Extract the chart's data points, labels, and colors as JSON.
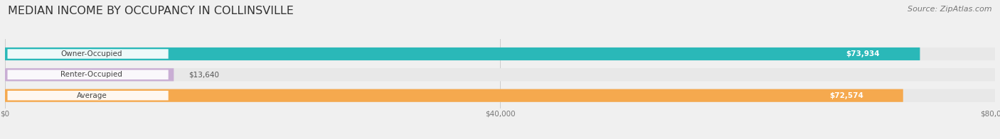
{
  "title": "MEDIAN INCOME BY OCCUPANCY IN COLLINSVILLE",
  "source": "Source: ZipAtlas.com",
  "categories": [
    "Owner-Occupied",
    "Renter-Occupied",
    "Average"
  ],
  "values": [
    73934,
    13640,
    72574
  ],
  "bar_colors": [
    "#2ab8b8",
    "#c9aed4",
    "#f5a94e"
  ],
  "bar_bg_color": "#e8e8e8",
  "value_labels": [
    "$73,934",
    "$13,640",
    "$72,574"
  ],
  "xlim": [
    0,
    80000
  ],
  "xticks": [
    0,
    40000,
    80000
  ],
  "xticklabels": [
    "$0",
    "$40,000",
    "$80,000"
  ],
  "title_fontsize": 11.5,
  "label_fontsize": 7.5,
  "value_fontsize": 7.5,
  "source_fontsize": 8,
  "background_color": "#f0f0f0",
  "bar_height": 0.62,
  "white_bg": "#ffffff"
}
